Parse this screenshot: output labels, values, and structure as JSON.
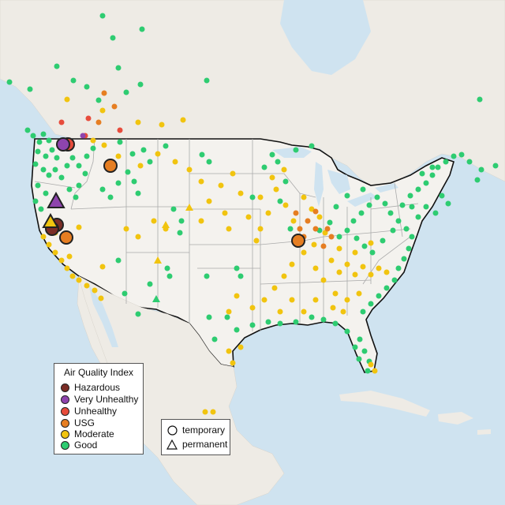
{
  "legend": {
    "title": "Air Quality Index",
    "categories": [
      {
        "label": "Hazardous",
        "color": "#7b2d26"
      },
      {
        "label": "Very Unhealthy",
        "color": "#8e44ad"
      },
      {
        "label": "Unhealthy",
        "color": "#e74c3c"
      },
      {
        "label": "USG",
        "color": "#e67e22"
      },
      {
        "label": "Moderate",
        "color": "#f1c40f"
      },
      {
        "label": "Good",
        "color": "#2ecc71"
      }
    ]
  },
  "monitor_types": [
    {
      "label": "temporary",
      "shape": "circle-icon"
    },
    {
      "label": "permanent",
      "shape": "triangle-icon"
    }
  ],
  "colors": {
    "water": "#cfe3f0",
    "land": "#efece6",
    "us_land": "#f4f2ee",
    "border": "#111111",
    "state_line": "#aaaaaa"
  }
}
